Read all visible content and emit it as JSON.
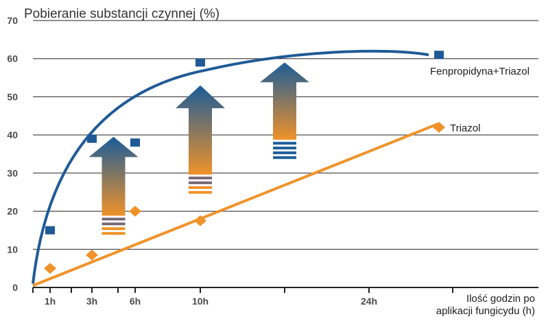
{
  "chart_data": {
    "type": "scatter",
    "title": "Pobieranie substancji czynnej (%)",
    "xlabel_lines": [
      "Ilość godzin po",
      "aplikacji fungicydu (h)"
    ],
    "ylim": [
      0,
      70
    ],
    "y_ticks": [
      0,
      10,
      20,
      30,
      40,
      50,
      60,
      70
    ],
    "x_ticks": [
      {
        "value": 1,
        "label": "1h"
      },
      {
        "value": 3,
        "label": "3h"
      },
      {
        "value": 6,
        "label": "6h"
      },
      {
        "value": 10,
        "label": "10h"
      },
      {
        "value": 24,
        "label": "24h"
      }
    ],
    "series": [
      {
        "name": "Fenpropidyna+Triazol",
        "color": "#1f5a96",
        "marker": "square",
        "points": [
          [
            1,
            15
          ],
          [
            3,
            39
          ],
          [
            6,
            38
          ],
          [
            10,
            59
          ],
          [
            30,
            61
          ]
        ]
      },
      {
        "name": "Triazol",
        "color": "#f0922a",
        "marker": "diamond",
        "points": [
          [
            1,
            5
          ],
          [
            3,
            8.5
          ],
          [
            6,
            20
          ],
          [
            10,
            17.5
          ],
          [
            30,
            42
          ]
        ]
      }
    ],
    "arrows": [
      {
        "x": 4.5,
        "bottom": 13,
        "top": 39.5
      },
      {
        "x": 10,
        "bottom": 23,
        "top": 53
      },
      {
        "x": 17,
        "bottom": 33,
        "top": 59
      }
    ],
    "arrow_colors": {
      "top": "#1b5c98",
      "bottom": "#f0922a"
    }
  }
}
